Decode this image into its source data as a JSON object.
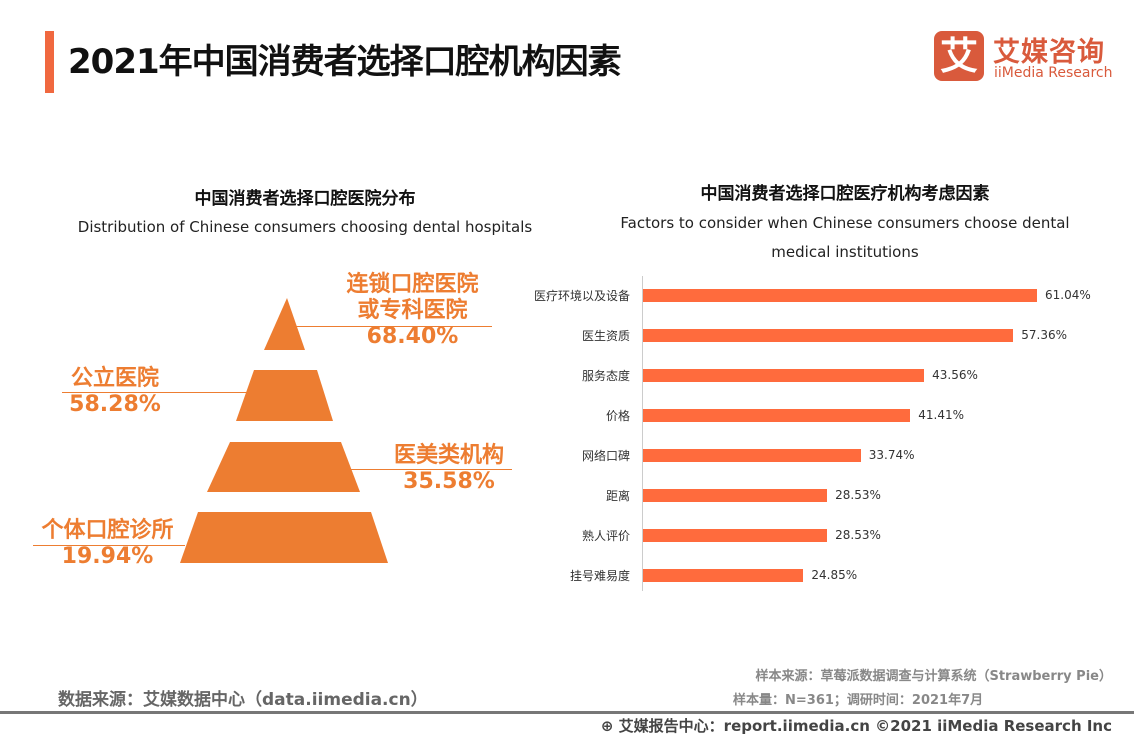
{
  "header": {
    "title": "2021年中国消费者选择口腔机构因素",
    "logo_mark": "艾",
    "logo_cn": "艾媒咨询",
    "logo_en": "iiMedia Research"
  },
  "left": {
    "title_cn": "中国消费者选择口腔医院分布",
    "title_en": "Distribution of Chinese consumers choosing dental hospitals",
    "layers": [
      {
        "label_lines": [
          "连锁口腔医院",
          "或专科医院"
        ],
        "value": "68.40%"
      },
      {
        "label_lines": [
          "公立医院"
        ],
        "value": "58.28%"
      },
      {
        "label_lines": [
          "医美类机构"
        ],
        "value": "35.58%"
      },
      {
        "label_lines": [
          "个体口腔诊所"
        ],
        "value": "19.94%"
      }
    ]
  },
  "chart_data": {
    "type": "bar",
    "orientation": "horizontal",
    "title": "中国消费者选择口腔医疗机构考虑因素",
    "subtitle": "Factors to consider when Chinese consumers choose dental medical institutions",
    "subtitle_lines": [
      "Factors to consider when Chinese consumers choose dental",
      "medical institutions"
    ],
    "categories": [
      "医疗环境以及设备",
      "医生资质",
      "服务态度",
      "价格",
      "网络口碑",
      "距离",
      "熟人评价",
      "挂号难易度"
    ],
    "values": [
      61.04,
      57.36,
      43.56,
      41.41,
      33.74,
      28.53,
      28.53,
      24.85
    ],
    "value_labels": [
      "61.04%",
      "57.36%",
      "43.56%",
      "41.41%",
      "33.74%",
      "28.53%",
      "28.53%",
      "24.85%"
    ],
    "color": "#FF6B3D"
  },
  "footer": {
    "source": "数据来源：艾媒数据中心（data.iimedia.cn）",
    "sample_source": "样本来源：草莓派数据调查与计算系统（Strawberry Pie）",
    "sample_size": "样本量：N=361；调研时间：2021年7月",
    "credit": "艾媒报告中心：report.iimedia.cn ©2021  iiMedia Research  Inc"
  },
  "colors": {
    "accent": "#F0683F",
    "pyramid": "#ED7D31",
    "bar": "#FF6B3D",
    "logo": "#D95A3C"
  }
}
